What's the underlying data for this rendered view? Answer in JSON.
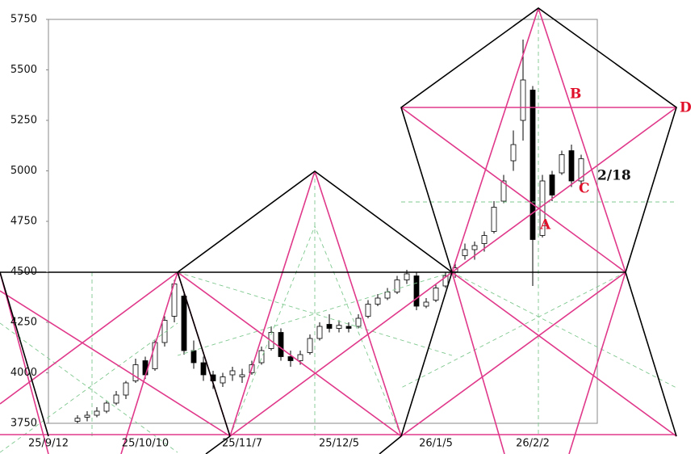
{
  "chart_data": {
    "type": "candlestick",
    "categories": [
      "25/9/12",
      null,
      null,
      null,
      null,
      null,
      null,
      null,
      null,
      null,
      "25/10/10",
      null,
      null,
      null,
      null,
      null,
      null,
      null,
      null,
      null,
      "25/11/7",
      null,
      null,
      null,
      null,
      null,
      null,
      null,
      null,
      null,
      "25/12/5",
      null,
      null,
      null,
      null,
      null,
      null,
      null,
      null,
      null,
      "26/1/5",
      null,
      null,
      null,
      null,
      null,
      null,
      null,
      null,
      null,
      "26/2/2",
      null,
      null,
      null,
      null,
      null
    ],
    "open": [
      null,
      null,
      null,
      3760,
      3780,
      3790,
      3810,
      3850,
      3890,
      3960,
      4060,
      4020,
      4150,
      4280,
      4380,
      4110,
      4050,
      3990,
      3950,
      3990,
      3980,
      4000,
      4050,
      4120,
      4200,
      4080,
      4060,
      4100,
      4170,
      4240,
      4220,
      4230,
      4230,
      4280,
      4340,
      4370,
      4400,
      4460,
      4480,
      4330,
      4360,
      4430,
      4500,
      4580,
      4610,
      4640,
      4700,
      4850,
      5050,
      5250,
      5400,
      4680,
      4980,
      4990,
      5100,
      4950
    ],
    "high": [
      null,
      null,
      null,
      3790,
      3810,
      3830,
      3860,
      3910,
      3960,
      4070,
      4080,
      4160,
      4280,
      4460,
      4400,
      4160,
      4080,
      4010,
      4000,
      4030,
      4020,
      4060,
      4130,
      4230,
      4220,
      4110,
      4110,
      4190,
      4250,
      4290,
      4260,
      4250,
      4290,
      4360,
      4390,
      4420,
      4480,
      4510,
      4500,
      4370,
      4440,
      4500,
      4540,
      4640,
      4650,
      4700,
      4850,
      4980,
      5200,
      5650,
      5420,
      4980,
      5000,
      5100,
      5130,
      5080
    ],
    "low": [
      null,
      null,
      null,
      3750,
      3760,
      3780,
      3800,
      3840,
      3870,
      3950,
      3970,
      4010,
      4130,
      4250,
      4090,
      4020,
      3960,
      3920,
      3930,
      3960,
      3950,
      3990,
      4040,
      4110,
      4060,
      4030,
      4040,
      4090,
      4160,
      4200,
      4200,
      4200,
      4220,
      4270,
      4330,
      4360,
      4390,
      4440,
      4310,
      4320,
      4350,
      4420,
      4470,
      4560,
      4560,
      4600,
      4690,
      4840,
      5000,
      5150,
      4430,
      4670,
      4850,
      4980,
      4920,
      4930
    ],
    "close": [
      null,
      null,
      null,
      3775,
      3790,
      3810,
      3850,
      3890,
      3950,
      4040,
      3990,
      4150,
      4260,
      4440,
      4110,
      4050,
      3990,
      3960,
      3980,
      4010,
      3990,
      4040,
      4110,
      4200,
      4080,
      4060,
      4090,
      4170,
      4230,
      4220,
      4235,
      4220,
      4270,
      4340,
      4370,
      4400,
      4460,
      4490,
      4330,
      4350,
      4420,
      4480,
      4520,
      4610,
      4630,
      4680,
      4820,
      4950,
      5130,
      5450,
      4660,
      4950,
      4880,
      5080,
      4950,
      5060
    ],
    "up_color": "#ffffff",
    "down_color": "#000000",
    "ylim": [
      3750,
      5750
    ],
    "yticks": [
      3750,
      4000,
      4250,
      4500,
      4750,
      5000,
      5250,
      5500,
      5750
    ],
    "annotations": [
      "A",
      "B",
      "C",
      "D",
      "2/18"
    ]
  }
}
